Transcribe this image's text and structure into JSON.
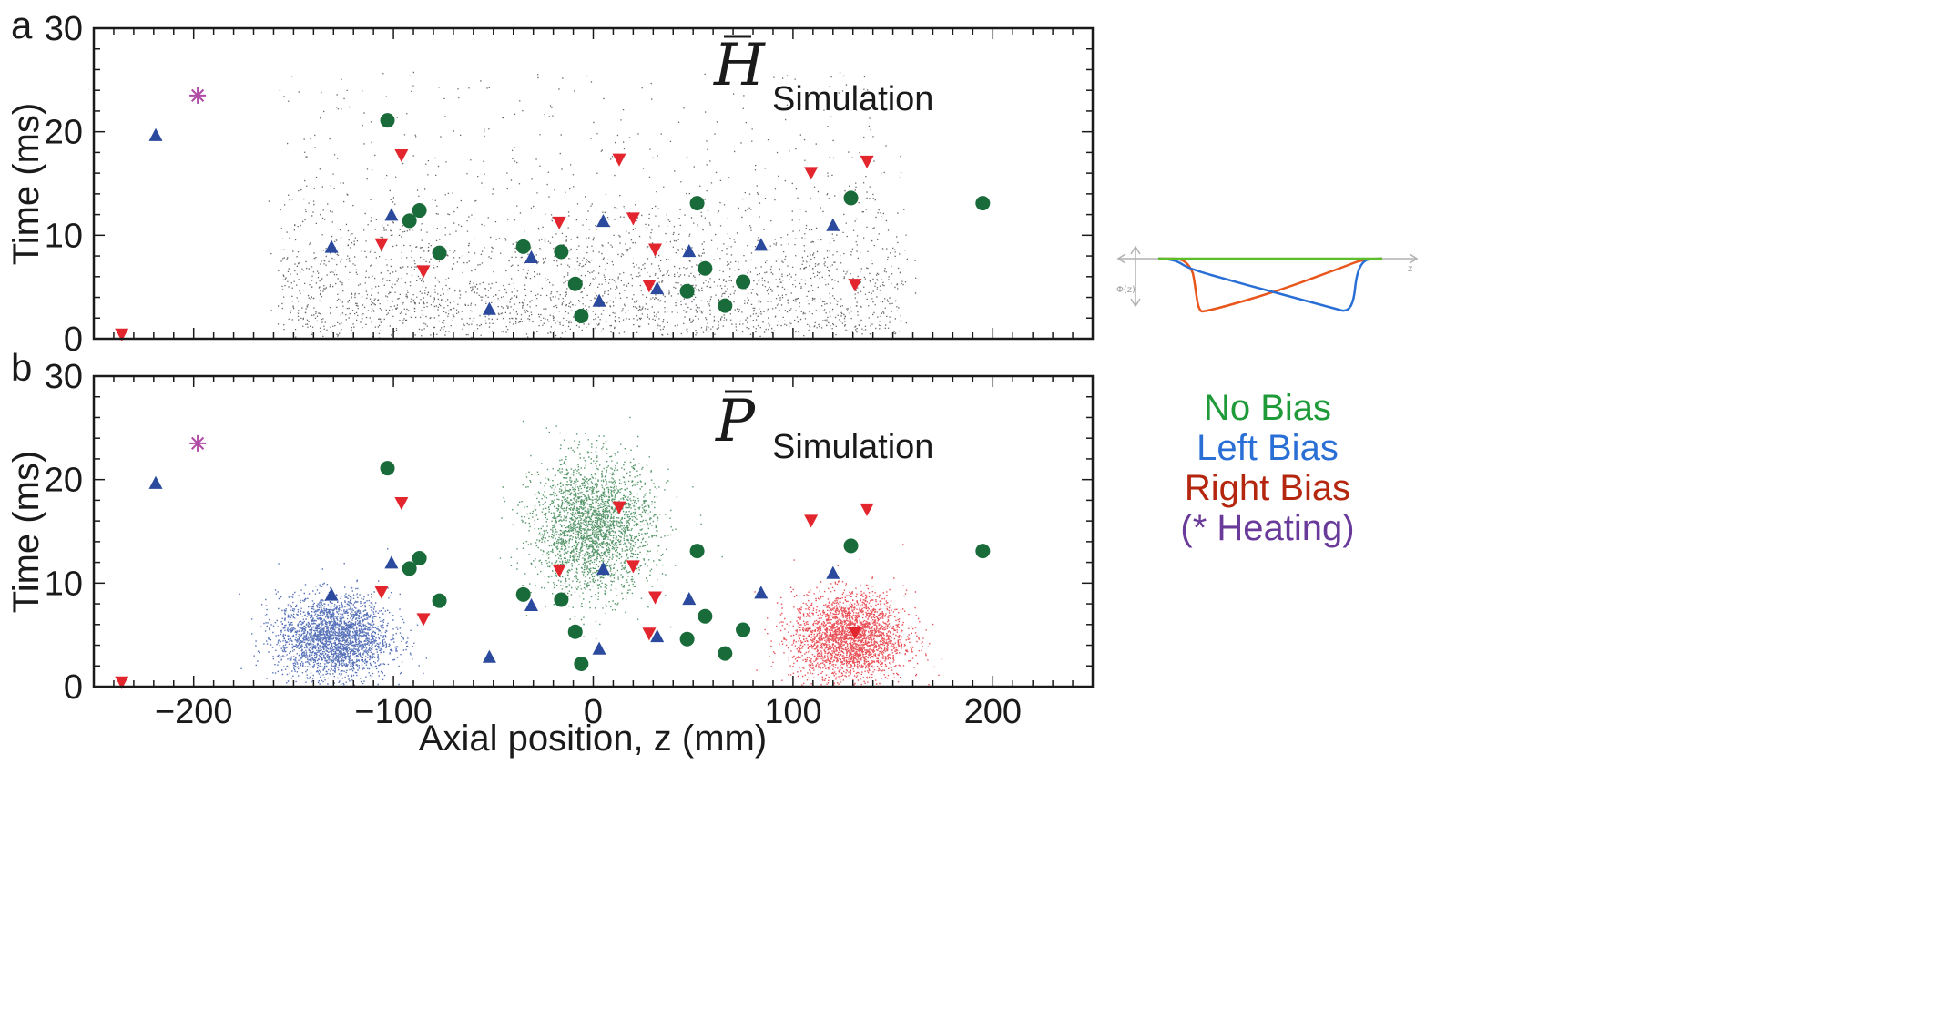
{
  "chart_data": {
    "type": "scatter",
    "x_axis": {
      "label": "Axial position,   z (mm)",
      "range": [
        -250,
        250
      ],
      "ticks": [
        -200,
        -100,
        0,
        100,
        200
      ]
    },
    "y_axis": {
      "label": "Time (ms)",
      "range": [
        0,
        30
      ],
      "ticks": [
        0,
        10,
        20,
        30
      ]
    },
    "panels": [
      {
        "letter": "a",
        "symbol": "H",
        "label": "Simulation",
        "simulation": "broad"
      },
      {
        "letter": "b",
        "symbol": "P",
        "label": "Simulation",
        "simulation": "clusters"
      }
    ],
    "series": [
      {
        "name": "No Bias",
        "marker": "circle",
        "color": "#1a6b3a",
        "points": [
          [
            -103,
            21.1
          ],
          [
            -92,
            11.4
          ],
          [
            -87,
            12.4
          ],
          [
            -77,
            8.3
          ],
          [
            -35,
            8.9
          ],
          [
            -16,
            8.4
          ],
          [
            -9,
            5.3
          ],
          [
            -6,
            2.2
          ],
          [
            47,
            4.6
          ],
          [
            52,
            13.1
          ],
          [
            56,
            6.8
          ],
          [
            66,
            3.2
          ],
          [
            75,
            5.5
          ],
          [
            129,
            13.6
          ],
          [
            195,
            13.1
          ]
        ]
      },
      {
        "name": "Left Bias",
        "marker": "triangle-up",
        "color": "#2b4a9e",
        "points": [
          [
            -219,
            19.6
          ],
          [
            -131,
            8.8
          ],
          [
            -101,
            11.9
          ],
          [
            -52,
            2.8
          ],
          [
            -31,
            7.8
          ],
          [
            3,
            3.6
          ],
          [
            5,
            11.3
          ],
          [
            32,
            4.8
          ],
          [
            48,
            8.4
          ],
          [
            84,
            9.0
          ],
          [
            120,
            10.9
          ]
        ]
      },
      {
        "name": "Right Bias",
        "marker": "triangle-down",
        "color": "#e3262e",
        "points": [
          [
            -236,
            0.5
          ],
          [
            -106,
            9.2
          ],
          [
            -96,
            17.8
          ],
          [
            -85,
            6.6
          ],
          [
            -17,
            11.3
          ],
          [
            13,
            17.4
          ],
          [
            20,
            11.7
          ],
          [
            28,
            5.2
          ],
          [
            31,
            8.7
          ],
          [
            109,
            16.1
          ],
          [
            131,
            5.3
          ],
          [
            137,
            17.2
          ]
        ]
      },
      {
        "name": "(* Heating)",
        "marker": "asterisk",
        "color": "#b04aa5",
        "points": [
          [
            -198,
            23.5
          ]
        ]
      }
    ],
    "legend": {
      "position": "right",
      "entries": [
        {
          "text": "No Bias",
          "color": "#1e9a38"
        },
        {
          "text": "Left Bias",
          "color": "#2a6fd6"
        },
        {
          "text": "Right Bias",
          "color": "#b5260e"
        },
        {
          "text": "(* Heating)",
          "color": "#6a3a9a"
        }
      ]
    },
    "simulation_clusters": [
      {
        "color": "#2d4fa6",
        "center_x": -130,
        "center_y": 4.8,
        "spread_x": 14,
        "spread_y": 2.0,
        "count": 2600
      },
      {
        "color": "#2e7d46",
        "center_x": 0,
        "center_y": 15.5,
        "spread_x": 15,
        "spread_y": 3.2,
        "count": 2600
      },
      {
        "color": "#e3262e",
        "center_x": 128,
        "center_y": 4.8,
        "spread_x": 14,
        "spread_y": 2.1,
        "count": 2600
      }
    ],
    "grid": false
  },
  "inset": {
    "y_label": "Φ(z)",
    "x_label": "z",
    "colors": {
      "no_bias": "#5cbf2a",
      "left_bias": "#2a6fd6",
      "right_bias": "#e8561c",
      "axis": "#b0b0b0"
    }
  }
}
